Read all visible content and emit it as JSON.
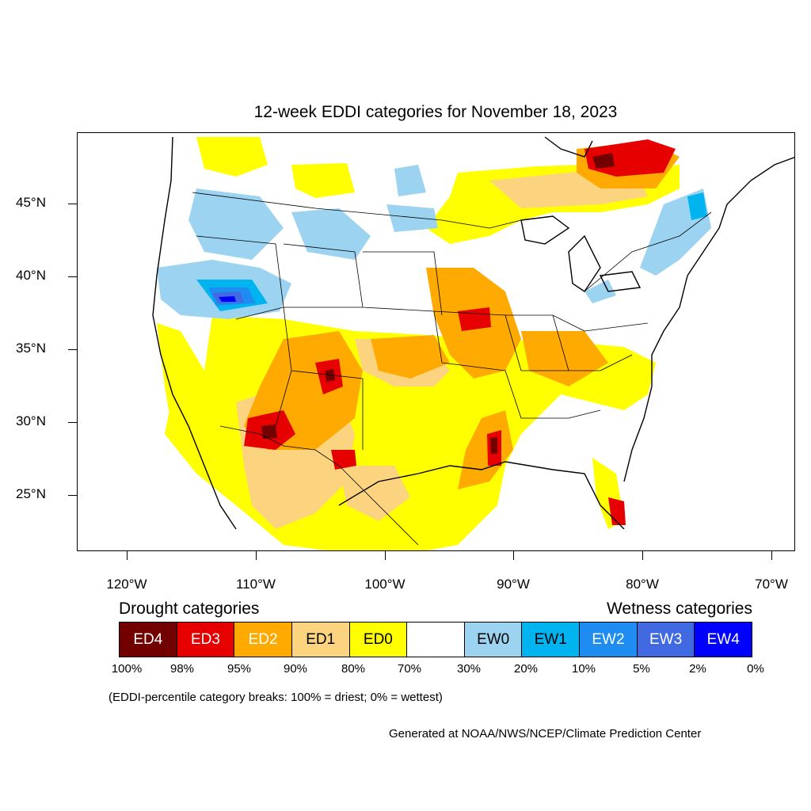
{
  "map": {
    "title": "12-week EDDI categories for November 18, 2023",
    "lat_labels": [
      "45°N",
      "40°N",
      "35°N",
      "30°N",
      "25°N"
    ],
    "lon_labels": [
      "120°W",
      "110°W",
      "100°W",
      "90°W",
      "80°W",
      "70°W"
    ]
  },
  "legend": {
    "drought_heading": "Drought categories",
    "wetness_heading": "Wetness categories",
    "categories": [
      {
        "label": "ED4",
        "color": "#730000",
        "text_color": "#ffffff"
      },
      {
        "label": "ED3",
        "color": "#e60000",
        "text_color": "#ffffff"
      },
      {
        "label": "ED2",
        "color": "#ffaa00",
        "text_color": "#ffffff"
      },
      {
        "label": "ED1",
        "color": "#fcd37f",
        "text_color": "#000000"
      },
      {
        "label": "ED0",
        "color": "#ffff00",
        "text_color": "#000000"
      },
      {
        "label": "",
        "color": "#ffffff",
        "text_color": "#000000"
      },
      {
        "label": "EW0",
        "color": "#9bd3f0",
        "text_color": "#000000"
      },
      {
        "label": "EW1",
        "color": "#00b4f0",
        "text_color": "#000000"
      },
      {
        "label": "EW2",
        "color": "#1e8cf0",
        "text_color": "#ffffff"
      },
      {
        "label": "EW3",
        "color": "#4169e1",
        "text_color": "#ffffff"
      },
      {
        "label": "EW4",
        "color": "#0000ff",
        "text_color": "#ffffff"
      }
    ],
    "percentiles": [
      "100%",
      "98%",
      "95%",
      "90%",
      "80%",
      "70%",
      "30%",
      "20%",
      "10%",
      "5%",
      "2%",
      "0%"
    ]
  },
  "note": "(EDDI-percentile category breaks: 100% = driest; 0% = wettest)",
  "credit": "Generated at NOAA/NWS/NCEP/Climate Prediction Center"
}
